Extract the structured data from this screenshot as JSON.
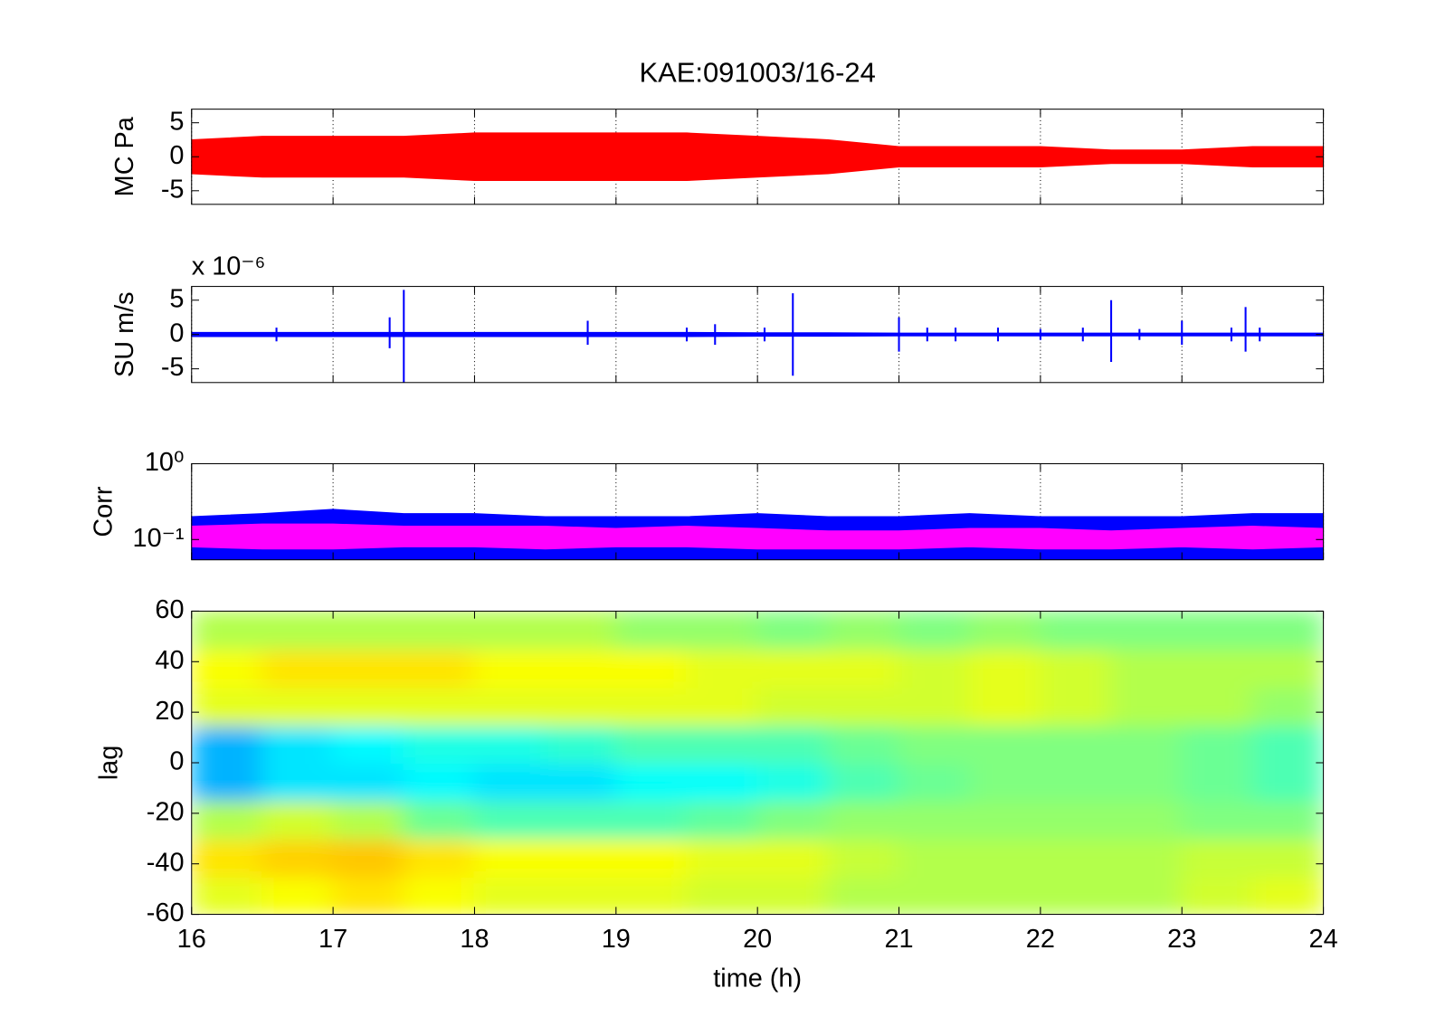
{
  "chart_data": [
    {
      "type": "band",
      "title": "KAE:091003/16-24",
      "ylabel": "MC Pa",
      "xlim": [
        16,
        24
      ],
      "xticks": [
        16,
        17,
        18,
        19,
        20,
        21,
        22,
        23,
        24
      ],
      "show_xticklabels": false,
      "grid": true,
      "ylim": [
        -7,
        7
      ],
      "yticks": [
        -5,
        0,
        5
      ],
      "x": [
        16,
        16.5,
        17,
        17.5,
        18,
        18.5,
        19,
        19.5,
        20,
        20.5,
        21,
        21.5,
        22,
        22.5,
        23,
        23.5,
        24
      ],
      "series": [
        {
          "color": "#ff0000",
          "upper": [
            2.5,
            3,
            3,
            3,
            3.5,
            3.5,
            3.5,
            3.5,
            3,
            2.5,
            1.5,
            1.5,
            1.5,
            1,
            1,
            1.5,
            1.5
          ],
          "lower": [
            -2.5,
            -3,
            -3,
            -3,
            -3.5,
            -3.5,
            -3.5,
            -3.5,
            -3,
            -2.5,
            -1.5,
            -1.5,
            -1.5,
            -1,
            -1,
            -1.5,
            -1.5
          ]
        }
      ]
    },
    {
      "type": "band",
      "ylabel": "SU m/s",
      "y_multiplier": "x 10⁻⁶",
      "xlim": [
        16,
        24
      ],
      "xticks": [
        16,
        17,
        18,
        19,
        20,
        21,
        22,
        23,
        24
      ],
      "show_xticklabels": false,
      "grid": true,
      "ylim": [
        -7,
        7
      ],
      "yticks": [
        -5,
        0,
        5
      ],
      "x": [
        16,
        16.5,
        17,
        17.5,
        18,
        18.5,
        19,
        19.5,
        20,
        20.5,
        21,
        21.5,
        22,
        22.5,
        23,
        23.5,
        24
      ],
      "series": [
        {
          "color": "#0000ff",
          "upper": [
            0.3,
            0.3,
            0.3,
            0.3,
            0.3,
            0.3,
            0.3,
            0.3,
            0.25,
            0.25,
            0.2,
            0.2,
            0.2,
            0.2,
            0.2,
            0.2,
            0.2
          ],
          "lower": [
            -0.3,
            -0.3,
            -0.3,
            -0.3,
            -0.3,
            -0.3,
            -0.3,
            -0.3,
            -0.25,
            -0.25,
            -0.2,
            -0.2,
            -0.2,
            -0.2,
            -0.2,
            -0.2,
            -0.2
          ]
        }
      ],
      "spikes": {
        "color": "#0000ff",
        "x": [
          16.6,
          17.4,
          17.5,
          18.8,
          19.5,
          19.7,
          20.05,
          20.25,
          21.0,
          21.2,
          21.4,
          21.7,
          22.0,
          22.3,
          22.5,
          22.7,
          23.0,
          23.35,
          23.45,
          23.55
        ],
        "upper": [
          1,
          2.5,
          6.5,
          2,
          1,
          1.5,
          1,
          6,
          2.5,
          1,
          1,
          1,
          0.8,
          1,
          5,
          0.8,
          2,
          1,
          4,
          1
        ],
        "lower": [
          -1,
          -2,
          -7,
          -1.5,
          -1,
          -1.5,
          -1,
          -6,
          -2.5,
          -1,
          -1,
          -1,
          -0.8,
          -1,
          -4,
          -0.8,
          -1.5,
          -1,
          -2.5,
          -1
        ]
      }
    },
    {
      "type": "band",
      "ylabel": "Corr",
      "yscale": "log",
      "xlim": [
        16,
        24
      ],
      "xticks": [
        16,
        17,
        18,
        19,
        20,
        21,
        22,
        23,
        24
      ],
      "show_xticklabels": false,
      "grid": true,
      "ylim": [
        0.054,
        1
      ],
      "yticks": [
        {
          "value": 1,
          "label": "10⁰"
        },
        {
          "value": 0.1,
          "label": "10⁻¹"
        }
      ],
      "x": [
        16,
        16.5,
        17,
        17.5,
        18,
        18.5,
        19,
        19.5,
        20,
        20.5,
        21,
        21.5,
        22,
        22.5,
        23,
        23.5,
        24
      ],
      "series": [
        {
          "color": "#0000ff",
          "upper": [
            0.2,
            0.22,
            0.25,
            0.22,
            0.22,
            0.2,
            0.2,
            0.2,
            0.22,
            0.2,
            0.2,
            0.22,
            0.2,
            0.2,
            0.2,
            0.22,
            0.22
          ],
          "lower": [
            0.055,
            0.055,
            0.055,
            0.055,
            0.055,
            0.055,
            0.055,
            0.055,
            0.055,
            0.055,
            0.055,
            0.055,
            0.055,
            0.055,
            0.055,
            0.055,
            0.055
          ]
        },
        {
          "color": "#ff00ff",
          "upper": [
            0.15,
            0.16,
            0.16,
            0.15,
            0.15,
            0.15,
            0.14,
            0.15,
            0.14,
            0.13,
            0.13,
            0.14,
            0.14,
            0.13,
            0.14,
            0.15,
            0.14
          ],
          "lower": [
            0.08,
            0.075,
            0.075,
            0.08,
            0.08,
            0.075,
            0.08,
            0.08,
            0.075,
            0.075,
            0.075,
            0.08,
            0.075,
            0.075,
            0.08,
            0.075,
            0.08
          ]
        }
      ]
    },
    {
      "type": "heatmap",
      "ylabel": "lag",
      "xlabel": "time (h)",
      "xlim": [
        16,
        24
      ],
      "xticks": [
        16,
        17,
        18,
        19,
        20,
        21,
        22,
        23,
        24
      ],
      "show_xticklabels": true,
      "grid": false,
      "ylim": [
        -60,
        60
      ],
      "yticks": [
        -60,
        -40,
        -20,
        0,
        20,
        40,
        60
      ],
      "colormap": "jet",
      "clim": [
        0,
        1
      ],
      "x": [
        16.25,
        16.75,
        17.25,
        17.75,
        18.25,
        18.75,
        19.25,
        19.75,
        20.25,
        20.75,
        21.25,
        21.75,
        22.25,
        22.75,
        23.25,
        23.75
      ],
      "y": [
        -52.5,
        -37.5,
        -22.5,
        -7.5,
        7.5,
        22.5,
        37.5,
        52.5
      ],
      "z": [
        [
          0.6,
          0.62,
          0.65,
          0.62,
          0.6,
          0.6,
          0.6,
          0.58,
          0.58,
          0.55,
          0.55,
          0.55,
          0.55,
          0.55,
          0.58,
          0.6
        ],
        [
          0.65,
          0.67,
          0.68,
          0.65,
          0.62,
          0.62,
          0.62,
          0.6,
          0.6,
          0.57,
          0.55,
          0.55,
          0.55,
          0.55,
          0.57,
          0.57
        ],
        [
          0.55,
          0.58,
          0.55,
          0.48,
          0.45,
          0.45,
          0.45,
          0.47,
          0.5,
          0.52,
          0.52,
          0.52,
          0.52,
          0.52,
          0.5,
          0.5
        ],
        [
          0.3,
          0.35,
          0.35,
          0.37,
          0.35,
          0.35,
          0.38,
          0.38,
          0.4,
          0.45,
          0.48,
          0.5,
          0.5,
          0.5,
          0.48,
          0.45
        ],
        [
          0.3,
          0.35,
          0.37,
          0.4,
          0.4,
          0.42,
          0.45,
          0.45,
          0.45,
          0.48,
          0.5,
          0.5,
          0.5,
          0.5,
          0.48,
          0.45
        ],
        [
          0.6,
          0.6,
          0.6,
          0.6,
          0.6,
          0.6,
          0.6,
          0.6,
          0.58,
          0.58,
          0.58,
          0.6,
          0.58,
          0.55,
          0.55,
          0.52
        ],
        [
          0.62,
          0.65,
          0.65,
          0.65,
          0.62,
          0.62,
          0.62,
          0.6,
          0.6,
          0.6,
          0.58,
          0.6,
          0.58,
          0.55,
          0.55,
          0.55
        ],
        [
          0.55,
          0.55,
          0.55,
          0.55,
          0.55,
          0.55,
          0.52,
          0.52,
          0.5,
          0.52,
          0.5,
          0.52,
          0.5,
          0.5,
          0.5,
          0.5
        ]
      ]
    }
  ]
}
